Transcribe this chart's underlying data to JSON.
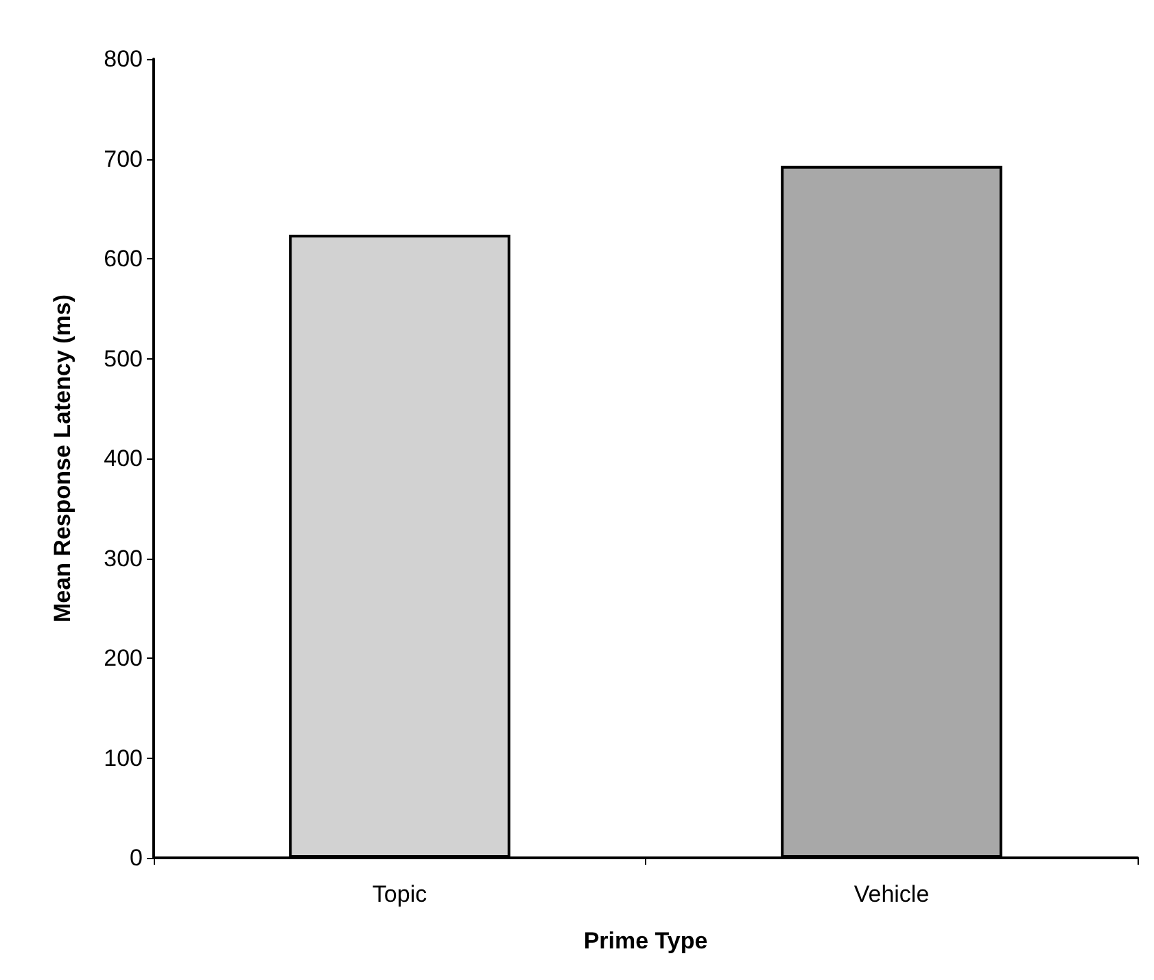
{
  "chart_data": {
    "type": "bar",
    "xlabel": "Prime Type",
    "ylabel": "Mean Response Latency (ms)",
    "categories": [
      "Topic",
      "Vehicle"
    ],
    "values": [
      624,
      693
    ],
    "colors": [
      "#d2d2d2",
      "#a8a8a8"
    ],
    "ylim": [
      0,
      800
    ],
    "yticks": [
      0,
      100,
      200,
      300,
      400,
      500,
      600,
      700,
      800
    ],
    "grid": false
  }
}
